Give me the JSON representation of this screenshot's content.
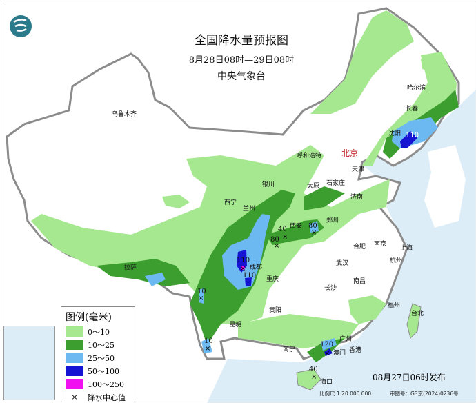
{
  "title": "全国降水量预报图",
  "period": "8月28日08时—29日08时",
  "organization": "中央气象台",
  "logo": "cma-logo",
  "colors": {
    "sea": "#dcedf7",
    "land": "#ffffff",
    "r0_10": "#a6e890",
    "r10_25": "#3c9e2e",
    "r25_50": "#6cb8f0",
    "r50_100": "#1414d2",
    "r100_250": "#f010f0",
    "border": "#8c8c8c"
  },
  "cities": [
    "乌鲁木齐",
    "哈尔滨",
    "长春",
    "沈阳",
    "呼和浩特",
    "北京",
    "天津",
    "石家庄",
    "太原",
    "济南",
    "银川",
    "西宁",
    "兰州",
    "西安",
    "郑州",
    "合肥",
    "南京",
    "上海",
    "杭州",
    "武汉",
    "成都",
    "重庆",
    "拉萨",
    "南昌",
    "长沙",
    "贵阳",
    "昆明",
    "福州",
    "台北",
    "南宁",
    "广州",
    "澳门",
    "香港",
    "海口"
  ],
  "precip_centers": [
    "110",
    "40",
    "80",
    "80",
    "110",
    "110",
    "10",
    "10",
    "120",
    "40"
  ],
  "legend": {
    "title": "图例(毫米)",
    "items": [
      {
        "label": "0～10",
        "color": "#a6e890"
      },
      {
        "label": "10～25",
        "color": "#3c9e2e"
      },
      {
        "label": "25～50",
        "color": "#6cb8f0"
      },
      {
        "label": "50～100",
        "color": "#1414d2"
      },
      {
        "label": "100～250",
        "color": "#f010f0"
      }
    ],
    "center_marker": "×",
    "center_label": "降水中心值"
  },
  "issued": "08月27日06时发布",
  "scale": "比例尺 1:20 000 000",
  "permit": "审图号：GS京(2024)0236号"
}
